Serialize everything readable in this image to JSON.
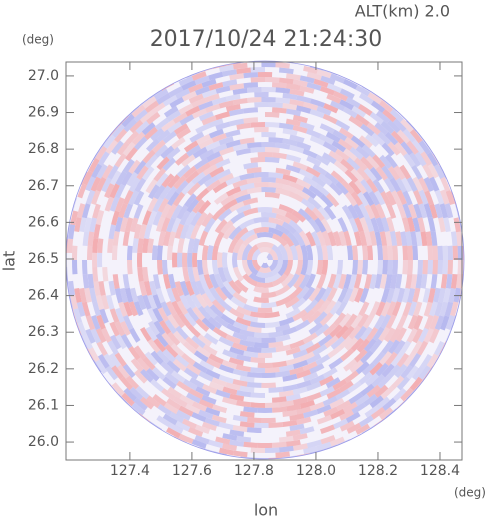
{
  "chart_data": {
    "type": "radar-ppi",
    "title": "2017/10/24 21:24:30",
    "subtitle": "ALT(km) 2.0",
    "x_label": "lon",
    "y_label": "lat",
    "x_unit": "(deg)",
    "y_unit": "(deg)",
    "xlim": [
      127.194,
      128.471
    ],
    "ylim": [
      25.951,
      27.038
    ],
    "xticks": [
      127.4,
      127.6,
      127.8,
      {
        "value": 128.0,
        "label": "128.0"
      },
      128.2,
      128.4
    ],
    "yticks": [
      {
        "value": 26.0,
        "label": "26.0"
      },
      26.1,
      26.2,
      26.3,
      26.4,
      26.5,
      26.6,
      26.7,
      26.8,
      26.9,
      {
        "value": 27.0,
        "label": "27.0"
      }
    ]
  }
}
